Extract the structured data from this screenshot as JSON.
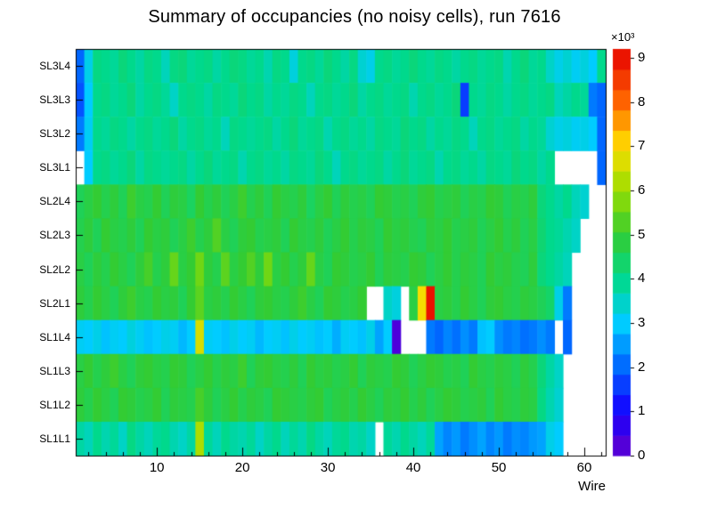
{
  "title": "Summary of occupancies (no noisy cells), run 7616",
  "chart_data": {
    "type": "heatmap",
    "title": "Summary of occupancies (no noisy cells), run 7616",
    "xlabel": "Wire",
    "x_ticks": [
      10,
      20,
      30,
      40,
      50,
      60
    ],
    "x_minor_tick_step": 2,
    "x_bins": 62,
    "x_range": [
      0.5,
      62.5
    ],
    "rows_top_to_bottom": [
      "SL3L4",
      "SL3L3",
      "SL3L2",
      "SL3L1",
      "SL2L4",
      "SL2L3",
      "SL2L2",
      "SL2L1",
      "SL1L4",
      "SL1L3",
      "SL1L2",
      "SL1L1"
    ],
    "z_scale_exponent_label": "×10³",
    "z_ticks": [
      0,
      1,
      2,
      3,
      4,
      5,
      6,
      7,
      8,
      9
    ],
    "zlim": [
      0,
      9.2
    ],
    "values_unit": "counts (×10³)",
    "empty_bins_are_white": true,
    "legend_position": "right-colorbar",
    "grid": false,
    "palette_stops": [
      {
        "v": 0.0,
        "color": "#6600cc"
      },
      {
        "v": 1.0,
        "color": "#1400ff"
      },
      {
        "v": 2.0,
        "color": "#0066ff"
      },
      {
        "v": 3.0,
        "color": "#00ccff"
      },
      {
        "v": 4.0,
        "color": "#00d98c"
      },
      {
        "v": 5.0,
        "color": "#33cc33"
      },
      {
        "v": 6.0,
        "color": "#99dd00"
      },
      {
        "v": 7.0,
        "color": "#ffdd00"
      },
      {
        "v": 8.0,
        "color": "#ff6600"
      },
      {
        "v": 9.2,
        "color": "#e60000"
      }
    ],
    "values": [
      [
        2.0,
        3.2,
        4.1,
        4.0,
        3.9,
        4.2,
        4.0,
        3.8,
        4.1,
        4.0,
        3.6,
        4.1,
        4.2,
        3.9,
        4.0,
        4.1,
        3.8,
        4.0,
        4.2,
        4.1,
        3.9,
        4.0,
        3.7,
        4.1,
        4.0,
        3.3,
        4.0,
        4.1,
        3.9,
        4.2,
        4.0,
        3.8,
        4.1,
        3.4,
        3.2,
        4.0,
        4.1,
        3.9,
        4.0,
        4.2,
        4.0,
        3.9,
        4.1,
        4.0,
        3.8,
        4.0,
        4.1,
        3.9,
        4.0,
        4.1,
        3.7,
        4.0,
        4.2,
        3.9,
        4.0,
        3.5,
        3.2,
        3.4,
        3.1,
        3.3,
        3.0,
        4.0
      ],
      [
        1.8,
        3.0,
        4.0,
        4.1,
        3.9,
        4.0,
        4.2,
        3.8,
        4.0,
        4.1,
        3.9,
        3.5,
        4.0,
        4.1,
        4.0,
        3.8,
        4.1,
        4.0,
        3.9,
        4.2,
        4.0,
        4.1,
        3.8,
        4.0,
        3.9,
        4.1,
        4.0,
        3.6,
        4.0,
        4.1,
        3.9,
        4.0,
        4.2,
        3.8,
        4.0,
        4.1,
        3.9,
        4.0,
        4.1,
        3.7,
        4.0,
        4.1,
        3.9,
        4.0,
        4.2,
        1.6,
        4.0,
        3.9,
        4.1,
        4.0,
        3.8,
        4.0,
        4.1,
        3.9,
        4.0,
        4.1,
        3.6,
        3.8,
        4.0,
        3.9,
        2.2,
        2.0
      ],
      [
        2.2,
        3.1,
        4.0,
        3.9,
        4.1,
        4.0,
        3.8,
        4.0,
        4.1,
        3.9,
        4.0,
        4.2,
        3.8,
        4.0,
        4.1,
        3.9,
        4.0,
        3.6,
        4.1,
        4.0,
        3.9,
        4.0,
        4.1,
        3.8,
        4.0,
        4.2,
        3.9,
        4.0,
        4.1,
        3.7,
        4.0,
        4.1,
        3.9,
        4.0,
        3.8,
        4.1,
        4.0,
        3.9,
        4.2,
        4.0,
        4.1,
        3.8,
        4.0,
        3.9,
        4.1,
        4.0,
        3.6,
        4.0,
        4.1,
        3.9,
        4.0,
        4.1,
        3.8,
        4.0,
        3.9,
        3.4,
        3.2,
        3.3,
        3.1,
        3.2,
        3.0,
        2.0
      ],
      [
        null,
        3.0,
        4.0,
        4.1,
        3.9,
        4.0,
        4.2,
        3.8,
        4.1,
        4.0,
        3.9,
        4.0,
        4.1,
        3.8,
        4.0,
        4.2,
        3.9,
        4.0,
        4.1,
        3.7,
        4.0,
        4.1,
        3.9,
        4.0,
        3.8,
        4.1,
        4.0,
        3.9,
        4.2,
        4.0,
        3.6,
        4.0,
        4.1,
        3.9,
        4.0,
        4.1,
        3.8,
        4.0,
        4.2,
        3.9,
        4.0,
        4.1,
        3.7,
        4.0,
        4.1,
        3.9,
        4.0,
        3.8,
        4.1,
        4.0,
        3.9,
        4.2,
        4.0,
        4.1,
        3.8,
        4.0,
        null,
        null,
        null,
        null,
        null,
        2.0
      ],
      [
        4.6,
        4.8,
        5.0,
        4.7,
        4.9,
        4.6,
        5.1,
        4.8,
        4.7,
        5.0,
        4.6,
        4.9,
        4.8,
        4.5,
        5.0,
        4.7,
        4.9,
        4.6,
        4.8,
        5.1,
        4.7,
        4.9,
        4.6,
        5.0,
        4.8,
        4.7,
        4.9,
        4.5,
        4.8,
        5.0,
        4.6,
        4.9,
        4.7,
        4.8,
        4.6,
        5.0,
        4.9,
        4.7,
        4.8,
        4.6,
        4.9,
        5.0,
        4.7,
        4.8,
        4.9,
        4.6,
        4.8,
        4.7,
        5.0,
        4.9,
        4.6,
        4.8,
        4.7,
        4.9,
        4.2,
        4.0,
        3.8,
        4.0,
        3.6,
        3.4,
        null,
        null
      ],
      [
        4.7,
        4.9,
        4.6,
        5.0,
        4.8,
        4.7,
        4.9,
        4.6,
        5.0,
        4.8,
        4.9,
        4.6,
        4.8,
        5.1,
        4.7,
        4.9,
        5.3,
        4.8,
        4.6,
        4.9,
        5.0,
        4.7,
        4.8,
        4.9,
        4.6,
        5.0,
        4.8,
        4.7,
        4.9,
        4.6,
        4.8,
        5.0,
        4.7,
        4.9,
        4.8,
        4.6,
        5.0,
        4.8,
        4.9,
        4.7,
        4.6,
        4.9,
        4.8,
        5.0,
        4.7,
        4.8,
        4.9,
        4.6,
        4.8,
        5.0,
        4.7,
        4.9,
        4.6,
        4.8,
        4.3,
        4.0,
        3.9,
        3.7,
        3.5,
        null,
        null,
        null
      ],
      [
        4.8,
        4.6,
        4.9,
        4.7,
        5.0,
        4.8,
        4.6,
        4.9,
        5.2,
        4.7,
        4.9,
        5.5,
        4.8,
        5.0,
        5.6,
        4.9,
        4.7,
        5.4,
        4.8,
        5.0,
        5.3,
        4.9,
        5.6,
        4.8,
        5.0,
        4.7,
        4.9,
        5.5,
        4.8,
        4.6,
        5.0,
        4.9,
        4.7,
        4.8,
        5.0,
        4.6,
        4.9,
        4.8,
        4.7,
        5.0,
        4.9,
        4.6,
        4.8,
        5.0,
        4.7,
        4.9,
        4.8,
        4.6,
        5.0,
        4.8,
        4.9,
        4.7,
        4.6,
        4.9,
        4.2,
        4.0,
        3.8,
        3.6,
        null,
        null,
        null,
        null
      ],
      [
        4.9,
        4.7,
        5.0,
        4.8,
        4.6,
        4.9,
        5.1,
        4.8,
        4.7,
        5.0,
        4.8,
        4.9,
        4.6,
        5.0,
        5.4,
        4.8,
        4.9,
        4.7,
        5.0,
        4.8,
        4.6,
        4.9,
        5.0,
        4.8,
        4.7,
        4.9,
        5.1,
        4.8,
        4.6,
        5.0,
        4.9,
        4.7,
        4.8,
        5.0,
        null,
        null,
        3.5,
        3.3,
        null,
        4.8,
        6.9,
        9.0,
        4.8,
        4.9,
        4.7,
        5.0,
        4.8,
        4.6,
        4.9,
        5.0,
        4.8,
        4.7,
        4.9,
        4.8,
        4.6,
        4.4,
        3.2,
        2.2,
        null,
        null,
        null,
        null
      ],
      [
        3.1,
        3.0,
        3.2,
        2.9,
        3.1,
        3.0,
        3.3,
        3.1,
        2.9,
        3.0,
        3.2,
        3.1,
        2.8,
        3.0,
        6.6,
        3.1,
        3.0,
        2.9,
        3.2,
        3.0,
        3.1,
        2.8,
        3.0,
        3.1,
        2.9,
        3.2,
        3.0,
        3.1,
        2.9,
        3.0,
        2.7,
        3.1,
        3.0,
        2.9,
        3.2,
        2.6,
        3.0,
        0.3,
        null,
        null,
        null,
        2.2,
        2.0,
        2.3,
        2.1,
        2.4,
        2.2,
        2.9,
        3.0,
        2.4,
        2.2,
        2.3,
        2.1,
        2.2,
        2.4,
        2.2,
        null,
        2.0,
        null,
        null,
        null,
        null
      ],
      [
        4.8,
        5.0,
        4.7,
        4.9,
        5.1,
        4.8,
        4.6,
        4.9,
        5.0,
        4.8,
        4.7,
        5.0,
        4.9,
        4.6,
        4.8,
        5.0,
        4.7,
        4.9,
        4.8,
        5.1,
        4.6,
        4.9,
        5.0,
        4.8,
        4.7,
        4.9,
        4.6,
        5.0,
        4.8,
        4.9,
        4.7,
        4.8,
        5.0,
        4.6,
        4.9,
        4.8,
        4.7,
        5.0,
        4.9,
        4.6,
        4.8,
        5.0,
        4.9,
        4.7,
        4.8,
        4.6,
        5.0,
        4.8,
        4.7,
        4.9,
        4.8,
        4.6,
        4.9,
        4.7,
        4.2,
        3.8,
        3.5,
        null,
        null,
        null,
        null,
        null
      ],
      [
        4.9,
        4.7,
        5.0,
        4.8,
        4.6,
        5.0,
        4.9,
        4.7,
        4.8,
        5.0,
        4.6,
        4.9,
        4.8,
        4.7,
        5.2,
        4.9,
        4.6,
        4.8,
        5.0,
        4.7,
        4.9,
        4.8,
        4.6,
        5.0,
        4.9,
        4.8,
        4.7,
        4.9,
        5.0,
        4.6,
        4.8,
        4.9,
        4.7,
        5.0,
        4.8,
        4.6,
        4.9,
        4.8,
        5.0,
        4.7,
        4.9,
        4.6,
        4.8,
        5.0,
        4.9,
        4.7,
        4.8,
        4.9,
        4.6,
        5.0,
        4.8,
        4.7,
        4.9,
        4.8,
        4.1,
        3.7,
        3.4,
        null,
        null,
        null,
        null,
        null
      ],
      [
        3.8,
        3.6,
        4.0,
        3.7,
        3.9,
        3.5,
        4.1,
        3.8,
        3.6,
        3.9,
        4.0,
        3.7,
        3.5,
        3.8,
        6.2,
        3.9,
        3.6,
        4.0,
        3.8,
        3.7,
        3.9,
        3.5,
        3.8,
        4.0,
        3.6,
        3.9,
        3.7,
        4.1,
        3.8,
        3.6,
        3.9,
        4.0,
        3.7,
        3.8,
        3.5,
        null,
        3.9,
        3.7,
        4.0,
        3.8,
        3.6,
        3.9,
        2.6,
        2.3,
        2.5,
        2.2,
        2.4,
        2.6,
        2.3,
        2.5,
        2.2,
        2.4,
        2.3,
        2.5,
        2.6,
        3.2,
        3.0,
        null,
        null,
        null,
        null,
        null
      ]
    ]
  }
}
